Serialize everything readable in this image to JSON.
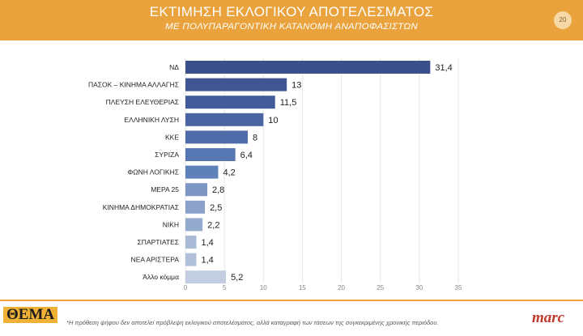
{
  "header": {
    "title": "ΕΚΤΙΜΗΣΗ ΕΚΛΟΓΙΚΟΥ ΑΠΟΤΕΛΕΣΜΑΤΟΣ",
    "subtitle": "ΜΕ ΠΟΛΥΠΑΡΑΓΟΝΤΙΚΗ ΚΑΤΑΝΟΜΗ ΑΝΑΠΟΦΑΣΙΣΤΩΝ",
    "page_number": "20",
    "background_color": "#e9a23c"
  },
  "chart_data": {
    "type": "bar",
    "orientation": "horizontal",
    "categories": [
      "ΝΔ",
      "ΠΑΣΟΚ – ΚΙΝΗΜΑ ΑΛΛΑΓΗΣ",
      "ΠΛΕΥΣΗ ΕΛΕΥΘΕΡΙΑΣ",
      "ΕΛΛΗΝΙΚΗ ΛΥΣΗ",
      "ΚΚΕ",
      "ΣΥΡΙΖΑ",
      "ΦΩΝΗ ΛΟΓΙΚΗΣ",
      "ΜΕΡΑ 25",
      "ΚΙΝΗΜΑ ΔΗΜΟΚΡΑΤΙΑΣ",
      "ΝΙΚΗ",
      "ΣΠΑΡΤΙΑΤΕΣ",
      "ΝΕΑ ΑΡΙΣΤΕΡΑ",
      "Άλλο κόμμα"
    ],
    "values": [
      31.4,
      13,
      11.5,
      10,
      8,
      6.4,
      4.2,
      2.8,
      2.5,
      2.2,
      1.4,
      1.4,
      5.2
    ],
    "value_labels": [
      "31,4",
      "13",
      "11,5",
      "10",
      "8",
      "6,4",
      "4,2",
      "2,8",
      "2,5",
      "2,2",
      "1,4",
      "1,4",
      "5,2"
    ],
    "bar_colors": [
      "#3b4f8a",
      "#3f5692",
      "#435c99",
      "#4964a1",
      "#4f6ca9",
      "#5677b1",
      "#5e81b8",
      "#7c95c2",
      "#8ba1c9",
      "#95aacf",
      "#aab9d6",
      "#b1bfd9",
      "#c2cde2"
    ],
    "xlim": [
      0,
      35
    ],
    "xticks": [
      0,
      5,
      10,
      15,
      20,
      25,
      30,
      35
    ],
    "grid": true,
    "title": "ΕΚΤΙΜΗΣΗ ΕΚΛΟΓΙΚΟΥ ΑΠΟΤΕΛΕΣΜΑΤΟΣ",
    "subtitle": "ΜΕ ΠΟΛΥΠΑΡΑΓΟΝΤΙΚΗ ΚΑΤΑΝΟΜΗ ΑΝΑΠΟΦΑΣΙΣΤΩΝ"
  },
  "footer": {
    "logo_text": "ΘΕΜΑ",
    "footnote": "*Η πρόθεση ψήφου δεν αποτελεί πρόβλεψη εκλογικού αποτελέσματος, αλλά καταγραφή των τάσεων της συγκεκριμένης χρονικής περιόδου.",
    "brand": "marc"
  }
}
